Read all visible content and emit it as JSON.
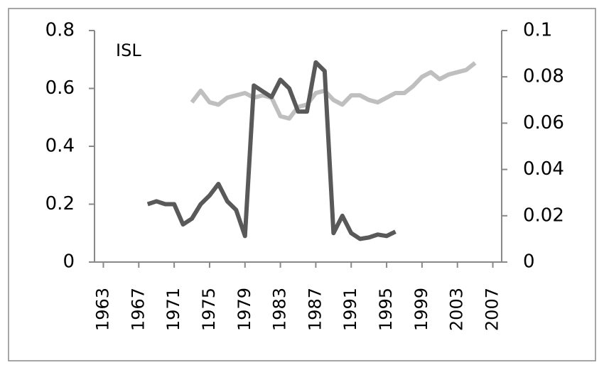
{
  "chart_data": {
    "type": "line",
    "title": "ISL",
    "xlim": [
      1962,
      2008
    ],
    "xticks": [
      1963,
      1967,
      1971,
      1975,
      1979,
      1983,
      1987,
      1991,
      1995,
      1999,
      2003,
      2007
    ],
    "ylim": [
      0,
      0.8
    ],
    "yticks": [
      0,
      0.2,
      0.4,
      0.6,
      0.8
    ],
    "y2lim": [
      0,
      0.1
    ],
    "y2ticks": [
      0,
      0.02,
      0.04,
      0.06,
      0.08,
      0.1
    ],
    "grid": false,
    "series": [
      {
        "color": "#595959",
        "x": [
          1968,
          1969,
          1970,
          1971,
          1972,
          1973,
          1974,
          1975,
          1976,
          1977,
          1978,
          1979,
          1980,
          1981,
          1982,
          1983,
          1984,
          1985,
          1986,
          1987,
          1988,
          1989,
          1990,
          1991,
          1992,
          1993,
          1994,
          1995,
          1996
        ],
        "values": [
          0.2,
          0.21,
          0.2,
          0.2,
          0.13,
          0.15,
          0.2,
          0.23,
          0.27,
          0.21,
          0.18,
          0.09,
          0.61,
          0.59,
          0.57,
          0.63,
          0.6,
          0.52,
          0.52,
          0.69,
          0.66,
          0.1,
          0.16,
          0.1,
          0.08,
          0.085,
          0.095,
          0.09,
          0.105
        ]
      },
      {
        "color": "#bfbfbf",
        "axis": "y2",
        "x": [
          1973,
          1974,
          1975,
          1976,
          1977,
          1978,
          1979,
          1980,
          1981,
          1982,
          1983,
          1984,
          1985,
          1986,
          1987,
          1988,
          1989,
          1990,
          1991,
          1992,
          1993,
          1994,
          1995,
          1996,
          1997,
          1998,
          1999,
          2000,
          2001,
          2002,
          2003,
          2004,
          2005
        ],
        "values": [
          0.069,
          0.074,
          0.069,
          0.068,
          0.071,
          0.072,
          0.073,
          0.071,
          0.072,
          0.071,
          0.063,
          0.062,
          0.067,
          0.068,
          0.073,
          0.074,
          0.07,
          0.068,
          0.072,
          0.072,
          0.07,
          0.069,
          0.071,
          0.073,
          0.073,
          0.076,
          0.08,
          0.082,
          0.079,
          0.081,
          0.082,
          0.083,
          0.086
        ]
      }
    ]
  }
}
